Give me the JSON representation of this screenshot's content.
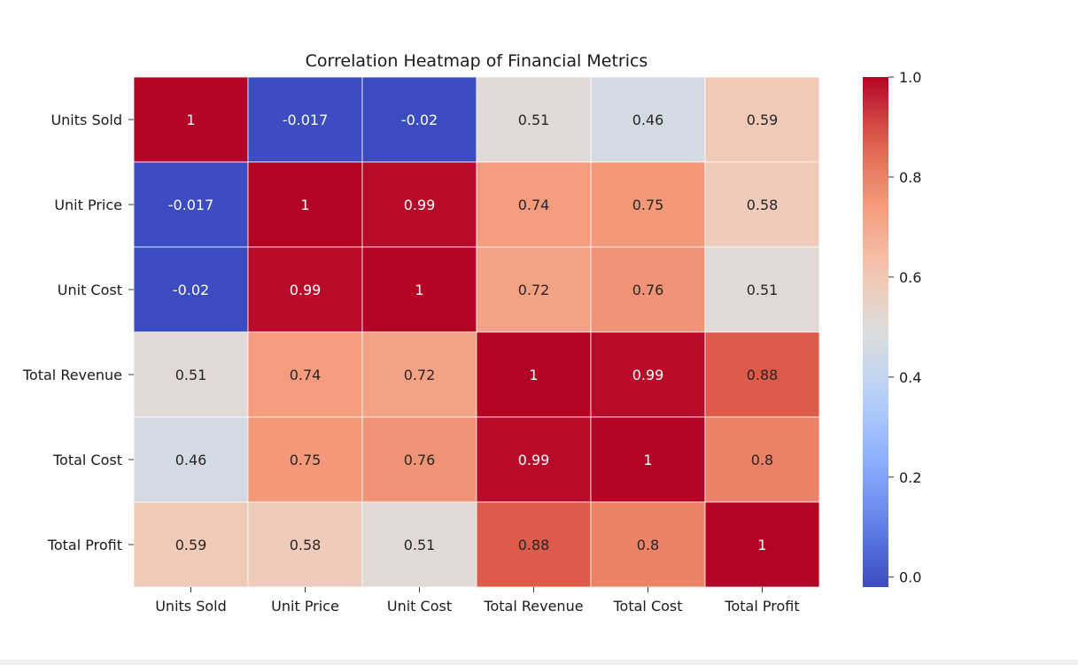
{
  "chart_data": {
    "type": "heatmap",
    "title": "Correlation Heatmap of Financial Metrics",
    "xlabel": "",
    "ylabel": "",
    "x_categories": [
      "Units Sold",
      "Unit Price",
      "Unit Cost",
      "Total Revenue",
      "Total Cost",
      "Total Profit"
    ],
    "y_categories": [
      "Units Sold",
      "Unit Price",
      "Unit Cost",
      "Total Revenue",
      "Total Cost",
      "Total Profit"
    ],
    "values": [
      [
        1,
        -0.017,
        -0.02,
        0.51,
        0.46,
        0.59
      ],
      [
        -0.017,
        1,
        0.99,
        0.74,
        0.75,
        0.58
      ],
      [
        -0.02,
        0.99,
        1,
        0.72,
        0.76,
        0.51
      ],
      [
        0.51,
        0.74,
        0.72,
        1,
        0.99,
        0.88
      ],
      [
        0.46,
        0.75,
        0.76,
        0.99,
        1,
        0.8
      ],
      [
        0.59,
        0.58,
        0.51,
        0.88,
        0.8,
        1
      ]
    ],
    "cell_labels": [
      [
        "1",
        "-0.017",
        "-0.02",
        "0.51",
        "0.46",
        "0.59"
      ],
      [
        "-0.017",
        "1",
        "0.99",
        "0.74",
        "0.75",
        "0.58"
      ],
      [
        "-0.02",
        "0.99",
        "1",
        "0.72",
        "0.76",
        "0.51"
      ],
      [
        "0.51",
        "0.74",
        "0.72",
        "1",
        "0.99",
        "0.88"
      ],
      [
        "0.46",
        "0.75",
        "0.76",
        "0.99",
        "1",
        "0.8"
      ],
      [
        "0.59",
        "0.58",
        "0.51",
        "0.88",
        "0.8",
        "1"
      ]
    ],
    "colormap": "coolwarm",
    "color_range": [
      -0.02,
      1.0
    ],
    "colorbar": {
      "ticks": [
        0.0,
        0.2,
        0.4,
        0.6,
        0.8,
        1.0
      ],
      "tick_labels": [
        "0.0",
        "0.2",
        "0.4",
        "0.6",
        "0.8",
        "1.0"
      ],
      "placement": "right"
    },
    "cell_borders": "#ffffff",
    "grid": false,
    "legend": "none"
  }
}
